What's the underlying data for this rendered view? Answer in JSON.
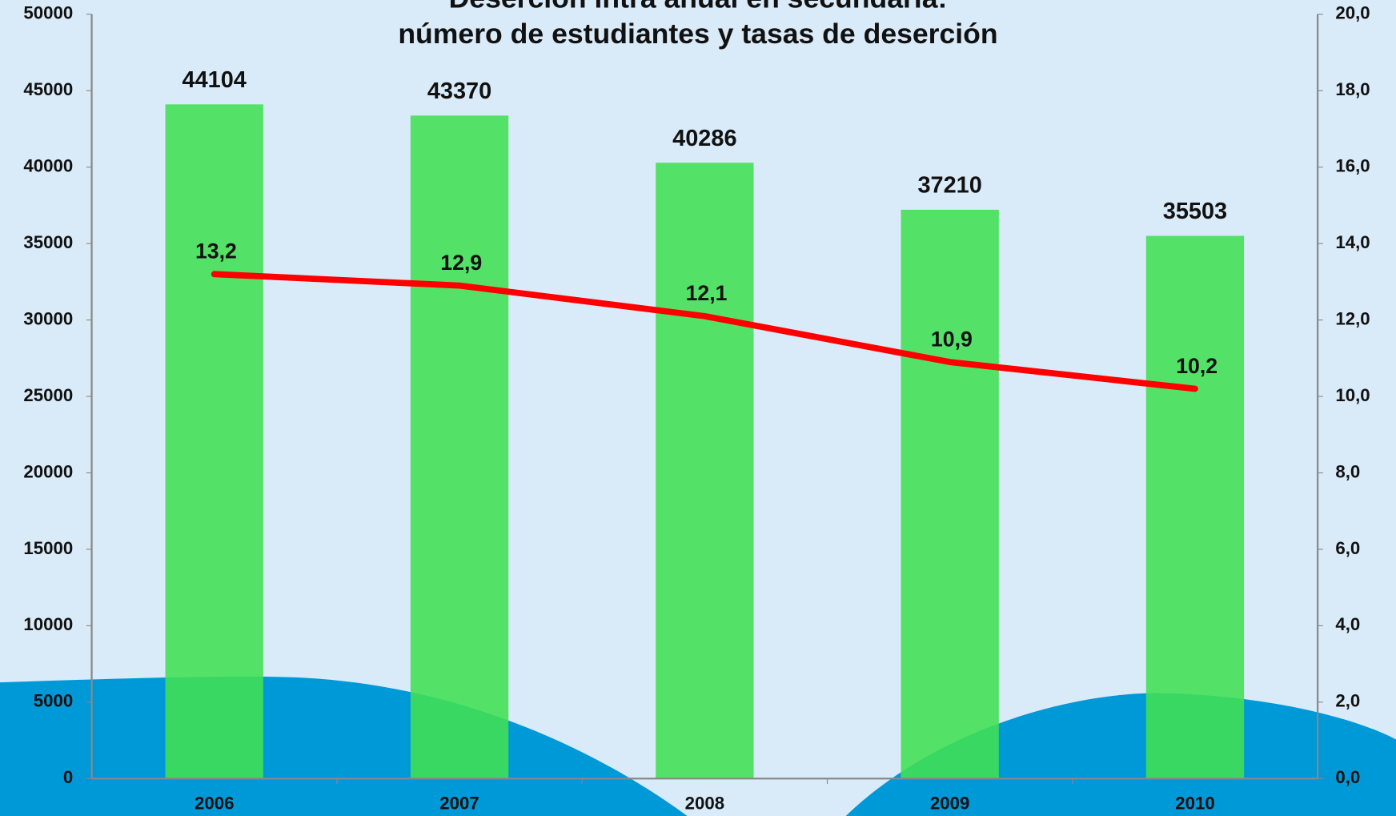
{
  "chart_data": {
    "type": "bar",
    "title": [
      "Deserción intra anual en secundaria:",
      "número de estudiantes y tasas de deserción"
    ],
    "categories": [
      "2006",
      "2007",
      "2008",
      "2009",
      "2010"
    ],
    "series": [
      {
        "type": "bar",
        "color": "#40e052",
        "values": [
          44104,
          43370,
          40286,
          37210,
          35503
        ]
      },
      {
        "type": "line",
        "axis": "y2",
        "color": "#ff0000",
        "values": [
          13.2,
          12.9,
          12.1,
          10.9,
          10.2
        ],
        "value_labels": [
          "13,2",
          "12,9",
          "12,1",
          "10,9",
          "10,2"
        ]
      }
    ],
    "ylim": [
      0,
      50000
    ],
    "yticks": [
      0,
      5000,
      10000,
      15000,
      20000,
      25000,
      30000,
      35000,
      40000,
      45000,
      50000
    ],
    "y2lim": [
      0,
      20
    ],
    "y2ticks": [
      {
        "value": 0,
        "label": "0,0"
      },
      {
        "value": 2,
        "label": "2,0"
      },
      {
        "value": 4,
        "label": "4,0"
      },
      {
        "value": 6,
        "label": "6,0"
      },
      {
        "value": 8,
        "label": "8,0"
      },
      {
        "value": 10,
        "label": "10,0"
      },
      {
        "value": 12,
        "label": "12,0"
      },
      {
        "value": 14,
        "label": "14,0"
      },
      {
        "value": 16,
        "label": "16,0"
      },
      {
        "value": 18,
        "label": "18,0"
      },
      {
        "value": 20,
        "label": "20,0"
      }
    ]
  }
}
